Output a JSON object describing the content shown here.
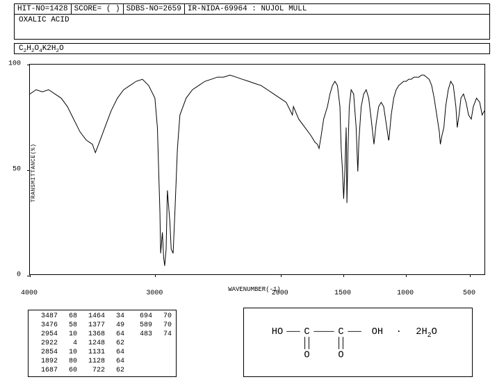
{
  "header": {
    "hit_no": "HIT-NO=1428",
    "score": "SCORE=  (  )",
    "sdbs_no": "SDBS-NO=2659",
    "ir_info": "IR-NIDA-69964 : NUJOL MULL"
  },
  "compound_name": "OXALIC ACID",
  "formula_raw": "C2H2O4K2H2O",
  "formula_segments": [
    {
      "t": "C",
      "sub": false
    },
    {
      "t": "2",
      "sub": true
    },
    {
      "t": "H",
      "sub": false
    },
    {
      "t": "2",
      "sub": true
    },
    {
      "t": "O",
      "sub": false
    },
    {
      "t": "4",
      "sub": true
    },
    {
      "t": "K2H",
      "sub": false
    },
    {
      "t": "2",
      "sub": true
    },
    {
      "t": "O",
      "sub": false
    }
  ],
  "chart": {
    "type": "line",
    "xlabel": "WAVENUMBER(-1)",
    "ylabel": "TRANSMITTANCE(%)",
    "xlim": [
      4000,
      400
    ],
    "ylim": [
      0,
      100
    ],
    "xticks": [
      4000,
      3000,
      2000,
      1500,
      1000,
      500
    ],
    "yticks": [
      0,
      50,
      100
    ],
    "line_color": "#000000",
    "background_color": "#ffffff",
    "line_width": 1,
    "data": [
      [
        4000,
        86
      ],
      [
        3950,
        88
      ],
      [
        3900,
        87
      ],
      [
        3850,
        88
      ],
      [
        3800,
        86
      ],
      [
        3750,
        84
      ],
      [
        3700,
        80
      ],
      [
        3650,
        74
      ],
      [
        3600,
        68
      ],
      [
        3550,
        64
      ],
      [
        3500,
        62
      ],
      [
        3476,
        58
      ],
      [
        3450,
        62
      ],
      [
        3400,
        70
      ],
      [
        3350,
        78
      ],
      [
        3300,
        84
      ],
      [
        3250,
        88
      ],
      [
        3200,
        90
      ],
      [
        3150,
        92
      ],
      [
        3100,
        93
      ],
      [
        3050,
        90
      ],
      [
        3000,
        84
      ],
      [
        2980,
        70
      ],
      [
        2960,
        30
      ],
      [
        2954,
        10
      ],
      [
        2940,
        20
      ],
      [
        2930,
        8
      ],
      [
        2922,
        4
      ],
      [
        2910,
        12
      ],
      [
        2900,
        40
      ],
      [
        2880,
        25
      ],
      [
        2870,
        12
      ],
      [
        2854,
        10
      ],
      [
        2840,
        30
      ],
      [
        2820,
        60
      ],
      [
        2800,
        76
      ],
      [
        2750,
        84
      ],
      [
        2700,
        88
      ],
      [
        2650,
        90
      ],
      [
        2600,
        92
      ],
      [
        2550,
        93
      ],
      [
        2500,
        94
      ],
      [
        2450,
        94
      ],
      [
        2400,
        95
      ],
      [
        2350,
        94
      ],
      [
        2300,
        93
      ],
      [
        2250,
        92
      ],
      [
        2200,
        91
      ],
      [
        2150,
        90
      ],
      [
        2100,
        88
      ],
      [
        2050,
        86
      ],
      [
        2000,
        84
      ],
      [
        1950,
        82
      ],
      [
        1900,
        76
      ],
      [
        1892,
        80
      ],
      [
        1850,
        74
      ],
      [
        1800,
        70
      ],
      [
        1750,
        66
      ],
      [
        1720,
        63
      ],
      [
        1700,
        62
      ],
      [
        1687,
        60
      ],
      [
        1670,
        66
      ],
      [
        1650,
        74
      ],
      [
        1620,
        80
      ],
      [
        1600,
        86
      ],
      [
        1580,
        90
      ],
      [
        1560,
        92
      ],
      [
        1540,
        90
      ],
      [
        1520,
        80
      ],
      [
        1510,
        60
      ],
      [
        1500,
        50
      ],
      [
        1490,
        36
      ],
      [
        1480,
        50
      ],
      [
        1470,
        70
      ],
      [
        1464,
        34
      ],
      [
        1455,
        60
      ],
      [
        1445,
        80
      ],
      [
        1430,
        88
      ],
      [
        1410,
        86
      ],
      [
        1390,
        70
      ],
      [
        1377,
        49
      ],
      [
        1368,
        64
      ],
      [
        1350,
        80
      ],
      [
        1330,
        86
      ],
      [
        1310,
        88
      ],
      [
        1290,
        84
      ],
      [
        1270,
        74
      ],
      [
        1248,
        62
      ],
      [
        1230,
        72
      ],
      [
        1210,
        80
      ],
      [
        1190,
        82
      ],
      [
        1170,
        80
      ],
      [
        1150,
        72
      ],
      [
        1131,
        64
      ],
      [
        1128,
        64
      ],
      [
        1110,
        76
      ],
      [
        1090,
        84
      ],
      [
        1070,
        88
      ],
      [
        1050,
        90
      ],
      [
        1030,
        91
      ],
      [
        1010,
        92
      ],
      [
        990,
        92
      ],
      [
        970,
        93
      ],
      [
        950,
        93
      ],
      [
        930,
        94
      ],
      [
        910,
        94
      ],
      [
        890,
        94
      ],
      [
        870,
        95
      ],
      [
        850,
        95
      ],
      [
        830,
        94
      ],
      [
        810,
        93
      ],
      [
        790,
        90
      ],
      [
        770,
        84
      ],
      [
        750,
        76
      ],
      [
        730,
        68
      ],
      [
        722,
        62
      ],
      [
        710,
        66
      ],
      [
        694,
        70
      ],
      [
        680,
        80
      ],
      [
        660,
        88
      ],
      [
        640,
        92
      ],
      [
        620,
        90
      ],
      [
        600,
        80
      ],
      [
        589,
        70
      ],
      [
        575,
        76
      ],
      [
        560,
        84
      ],
      [
        540,
        86
      ],
      [
        520,
        82
      ],
      [
        500,
        76
      ],
      [
        483,
        74
      ],
      [
        470,
        80
      ],
      [
        450,
        84
      ],
      [
        430,
        82
      ],
      [
        415,
        76
      ],
      [
        400,
        78
      ]
    ]
  },
  "peak_table": {
    "columns": 3,
    "rows": [
      [
        [
          3487,
          68
        ],
        [
          1464,
          34
        ],
        [
          694,
          70
        ]
      ],
      [
        [
          3476,
          58
        ],
        [
          1377,
          49
        ],
        [
          589,
          70
        ]
      ],
      [
        [
          2954,
          10
        ],
        [
          1368,
          64
        ],
        [
          483,
          74
        ]
      ],
      [
        [
          2922,
          4
        ],
        [
          1248,
          62
        ],
        null
      ],
      [
        [
          2854,
          10
        ],
        [
          1131,
          64
        ],
        null
      ],
      [
        [
          1892,
          80
        ],
        [
          1128,
          64
        ],
        null
      ],
      [
        [
          1687,
          60
        ],
        [
          722,
          62
        ],
        null
      ]
    ]
  },
  "structure": {
    "formula_display": "HO—C(=O)—C(=O)—OH · 2H2O",
    "text_color": "#000000",
    "line_color": "#000000"
  }
}
